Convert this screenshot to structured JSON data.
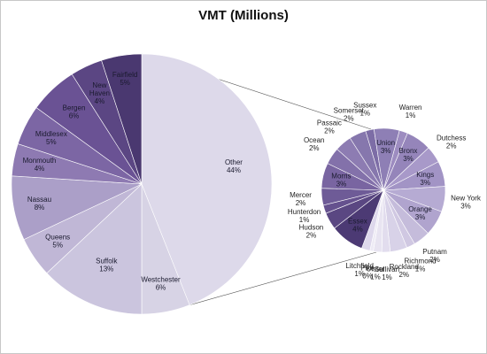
{
  "chart_data": {
    "type": "pie",
    "subtype": "pie-of-pie",
    "title": "VMT (Millions)",
    "primary": {
      "slices": [
        {
          "name": "Other",
          "pct": "44%",
          "value": 44,
          "color": "#ddd9ea"
        },
        {
          "name": "Westchester",
          "pct": "6%",
          "value": 6,
          "color": "#d7d3e5"
        },
        {
          "name": "Suffolk",
          "pct": "13%",
          "value": 13,
          "color": "#cbc5de"
        },
        {
          "name": "Queens",
          "pct": "5%",
          "value": 5,
          "color": "#c0b7d6"
        },
        {
          "name": "Nassau",
          "pct": "8%",
          "value": 8,
          "color": "#ab9fc8"
        },
        {
          "name": "Monmouth",
          "pct": "4%",
          "value": 4,
          "color": "#8e7ab2"
        },
        {
          "name": "Middlesex",
          "pct": "5%",
          "value": 5,
          "color": "#7c66a4"
        },
        {
          "name": "Bergen",
          "pct": "6%",
          "value": 6,
          "color": "#6a5294"
        },
        {
          "name": "New Haven",
          "pct": "4%",
          "value": 4,
          "color": "#5b4683"
        },
        {
          "name": "Fairfield",
          "pct": "5%",
          "value": 5,
          "color": "#4a3870"
        }
      ]
    },
    "secondary": {
      "slices": [
        {
          "name": "Warren",
          "pct": "1%",
          "value": 1,
          "color": "#9d8cc0"
        },
        {
          "name": "Bronx",
          "pct": "3%",
          "value": 3,
          "color": "#9585ba"
        },
        {
          "name": "Dutchess",
          "pct": "2%",
          "value": 2,
          "color": "#a899c9"
        },
        {
          "name": "Kings",
          "pct": "3%",
          "value": 3,
          "color": "#a294c5"
        },
        {
          "name": "New York",
          "pct": "3%",
          "value": 3,
          "color": "#b6abd3"
        },
        {
          "name": "Orange",
          "pct": "3%",
          "value": 3,
          "color": "#b0a4ce"
        },
        {
          "name": "Putnam",
          "pct": "2%",
          "value": 2,
          "color": "#c5bcdb"
        },
        {
          "name": "Richmond",
          "pct": "1%",
          "value": 1,
          "color": "#d0c8e2"
        },
        {
          "name": "Rockland",
          "pct": "2%",
          "value": 2,
          "color": "#d8d2e8"
        },
        {
          "name": "Sullivan",
          "pct": "1%",
          "value": 1,
          "color": "#e2ddee"
        },
        {
          "name": "Ulster",
          "pct": "1%",
          "value": 1,
          "color": "#e8e4f1"
        },
        {
          "name": "Pike",
          "pct": "0%",
          "value": 0.4,
          "color": "#eeebf5"
        },
        {
          "name": "Litchfield",
          "pct": "1%",
          "value": 1,
          "color": "#ded8ec"
        },
        {
          "name": "Essex",
          "pct": "4%",
          "value": 4,
          "color": "#4c3a74"
        },
        {
          "name": "Hudson",
          "pct": "2%",
          "value": 2,
          "color": "#5a4782"
        },
        {
          "name": "Hunterdon",
          "pct": "1%",
          "value": 1,
          "color": "#65518e"
        },
        {
          "name": "Mercer",
          "pct": "2%",
          "value": 2,
          "color": "#6e5b97"
        },
        {
          "name": "Morris",
          "pct": "3%",
          "value": 3,
          "color": "#7965a1"
        },
        {
          "name": "Ocean",
          "pct": "2%",
          "value": 2,
          "color": "#8371aa"
        },
        {
          "name": "Passaic",
          "pct": "2%",
          "value": 2,
          "color": "#8d7cb2"
        },
        {
          "name": "Somerset",
          "pct": "2%",
          "value": 2,
          "color": "#8677ad"
        },
        {
          "name": "Sussex",
          "pct": "1%",
          "value": 1,
          "color": "#7d6da6"
        },
        {
          "name": "Union",
          "pct": "3%",
          "value": 3,
          "color": "#8e7fb5"
        }
      ]
    }
  }
}
